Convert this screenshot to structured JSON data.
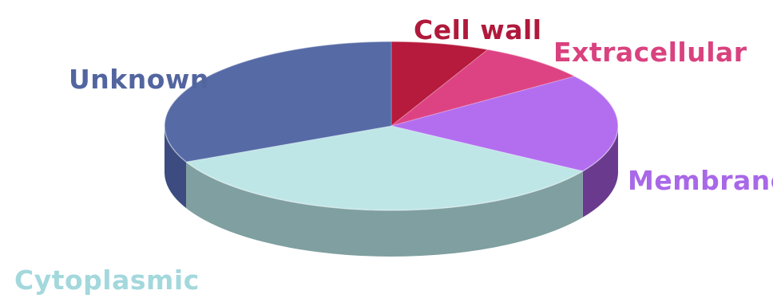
{
  "chart_data": {
    "type": "pie",
    "style": "3d",
    "title": "",
    "categories": [
      "Cell wall",
      "Extracellular",
      "Membrane",
      "Cytoplasmic",
      "Unknown"
    ],
    "values": [
      7,
      8,
      19,
      34,
      32
    ],
    "colors": [
      "#b61a3c",
      "#dd4383",
      "#b36ef0",
      "#bfe6e7",
      "#566aa6"
    ],
    "side_colors": [
      "#7a1028",
      "#9a2c5a",
      "#6a3a8e",
      "#7f9fa0",
      "#3c4c80"
    ],
    "legend": "labels-beside-slices"
  }
}
